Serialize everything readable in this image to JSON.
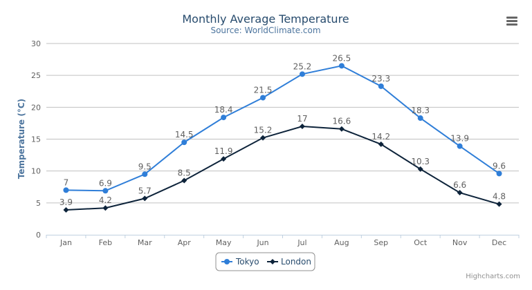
{
  "chart_data": {
    "type": "line",
    "title": "Monthly Average Temperature",
    "subtitle": "Source: WorldClimate.com",
    "ylabel": "Temperature (°C)",
    "xlabel": "",
    "categories": [
      "Jan",
      "Feb",
      "Mar",
      "Apr",
      "May",
      "Jun",
      "Jul",
      "Aug",
      "Sep",
      "Oct",
      "Nov",
      "Dec"
    ],
    "ylim": [
      0,
      30
    ],
    "yticks": [
      0,
      5,
      10,
      15,
      20,
      25,
      30
    ],
    "grid": true,
    "legend_placement": "bottom-center",
    "series": [
      {
        "name": "Tokyo",
        "color": "#2f7ed8",
        "marker": "circle",
        "values": [
          7.0,
          6.9,
          9.5,
          14.5,
          18.4,
          21.5,
          25.2,
          26.5,
          23.3,
          18.3,
          13.9,
          9.6
        ]
      },
      {
        "name": "London",
        "color": "#0d233a",
        "marker": "diamond",
        "values": [
          3.9,
          4.2,
          5.7,
          8.5,
          11.9,
          15.2,
          17.0,
          16.6,
          14.2,
          10.3,
          6.6,
          4.8
        ]
      }
    ],
    "credits": "Highcharts.com"
  },
  "colors": {
    "title": "#274b6d",
    "subtitle": "#4d759e",
    "grid": "#c0c0c0",
    "axis": "#c0d0e0"
  },
  "icons": {
    "menu": "hamburger-menu-icon"
  }
}
